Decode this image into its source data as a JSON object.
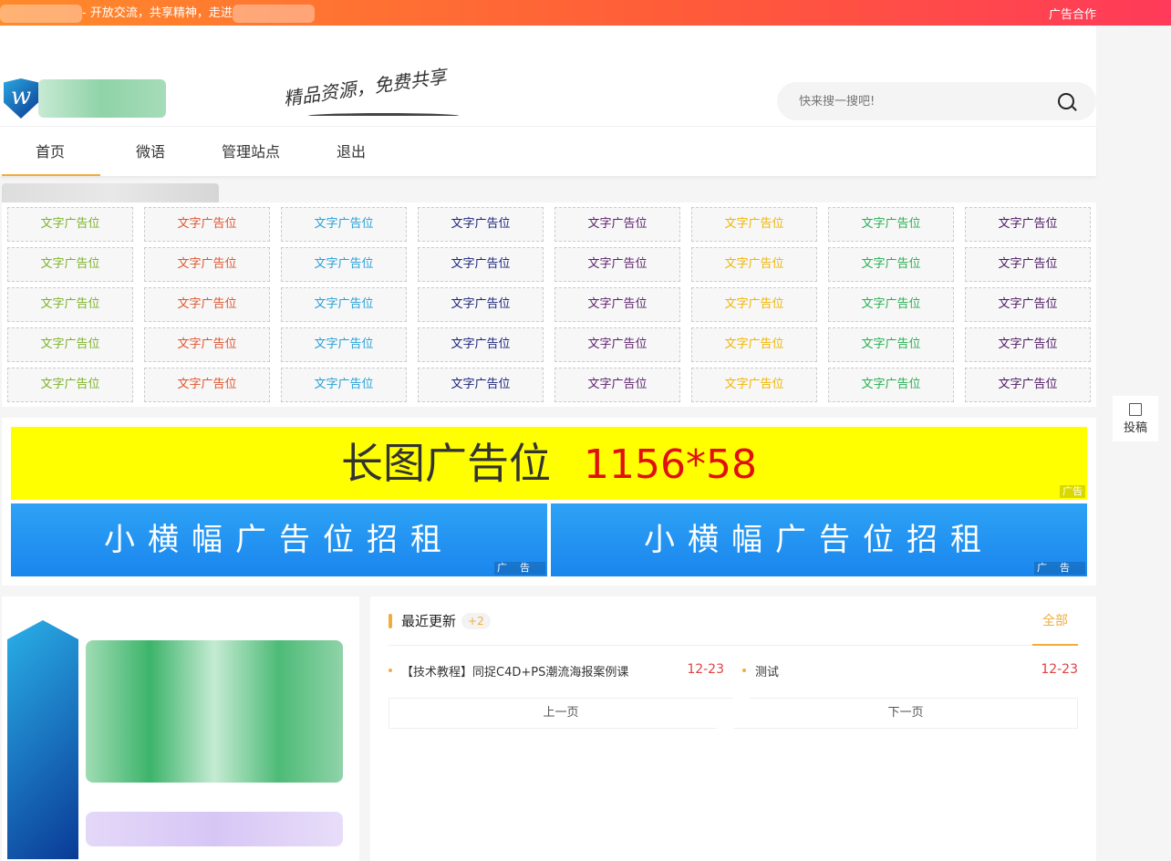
{
  "topbar": {
    "tagline": "- 开放交流，共享精神，走进",
    "ad_link": "广告合作"
  },
  "header": {
    "slogan": "精品资源，免费共享",
    "search_placeholder": "快来搜一搜吧!"
  },
  "nav": [
    {
      "label": "首页"
    },
    {
      "label": "微语"
    },
    {
      "label": "管理站点"
    },
    {
      "label": "退出"
    }
  ],
  "text_ads": {
    "label": "文字广告位",
    "rows": 5,
    "colors": [
      "#7cb228",
      "#e0542d",
      "#25a0d8",
      "#1a237e",
      "#5b1e6b",
      "#f0b400",
      "#25b050",
      "#4a1660"
    ]
  },
  "banners": {
    "long_text": "长图广告位",
    "long_size": "1156*58",
    "small_text": "小横幅广告位招租",
    "tag": "广告"
  },
  "recent": {
    "title": "最近更新",
    "badge": "+2",
    "all_link": "全部",
    "items": [
      {
        "title": "【技术教程】同捉C4D+PS潮流海报案例课",
        "date": "12-23"
      },
      {
        "title": "测试",
        "date": "12-23"
      }
    ],
    "prev": "上一页",
    "next": "下一页"
  },
  "float": {
    "submit": "投稿"
  }
}
